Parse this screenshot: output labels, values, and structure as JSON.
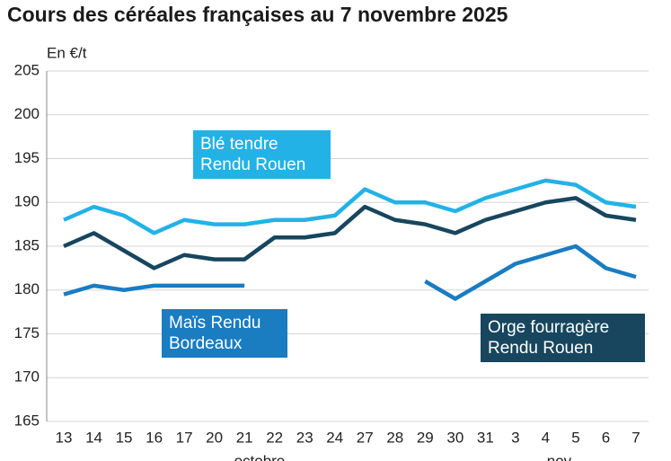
{
  "chart_data": {
    "type": "line",
    "title": "Cours des céréales françaises au 7 novembre 2025",
    "y_label": "En €/t",
    "categories": [
      "13",
      "14",
      "15",
      "16",
      "17",
      "20",
      "21",
      "22",
      "23",
      "24",
      "27",
      "28",
      "29",
      "30",
      "31",
      "3",
      "4",
      "5",
      "6",
      "7"
    ],
    "month_labels": [
      "octobre",
      "nov."
    ],
    "series": [
      {
        "name": "Blé tendre Rendu Rouen",
        "color": "#22b2e6",
        "values": [
          188,
          189.5,
          188.5,
          186.5,
          188,
          187.5,
          187.5,
          188,
          188,
          188.5,
          191.5,
          190,
          190,
          189,
          190.5,
          191.5,
          192.5,
          192,
          190,
          189.5
        ]
      },
      {
        "name": "Orge fourragère Rendu Rouen",
        "color": "#17465e",
        "values": [
          185,
          186.5,
          184.5,
          182.5,
          184,
          183.5,
          183.5,
          186,
          186,
          186.5,
          189.5,
          188,
          187.5,
          186.5,
          188,
          189,
          190,
          190.5,
          188.5,
          188
        ]
      },
      {
        "name": "Maïs Rendu Bordeaux",
        "color": "#1a7cc1",
        "values": [
          179.5,
          180.5,
          180,
          180.5,
          180.5,
          180.5,
          180.5,
          null,
          null,
          null,
          null,
          null,
          181,
          179,
          181,
          183,
          184,
          185,
          182.5,
          181.5
        ]
      }
    ],
    "ylim": [
      165,
      205
    ],
    "yticks": [
      165,
      170,
      175,
      180,
      185,
      190,
      195,
      200,
      205
    ],
    "grid": true
  }
}
